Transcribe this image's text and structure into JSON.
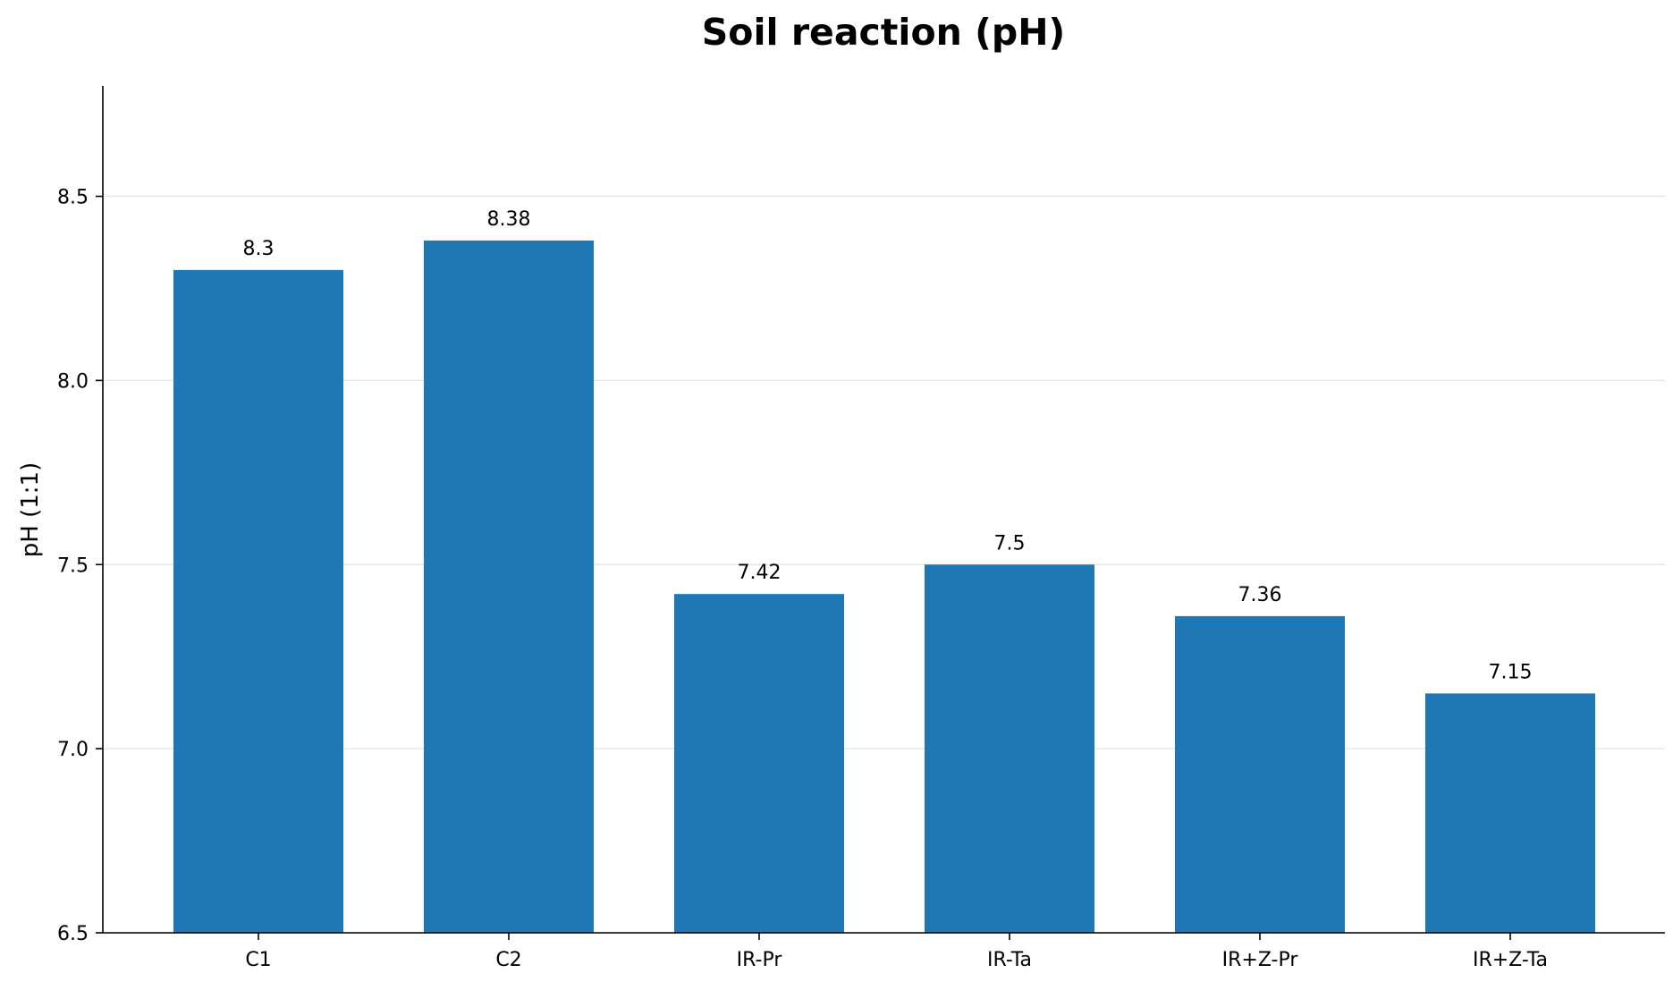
{
  "chart_data": {
    "type": "bar",
    "title": "Soil reaction (pH)",
    "xlabel": "",
    "ylabel": "pH (1:1)",
    "categories": [
      "C1",
      "C2",
      "IR-Pr",
      "IR-Ta",
      "IR+Z-Pr",
      "IR+Z-Ta"
    ],
    "values": [
      8.3,
      8.38,
      7.42,
      7.5,
      7.36,
      7.15
    ],
    "data_labels": [
      "8.3",
      "8.38",
      "7.42",
      "7.5",
      "7.36",
      "7.15"
    ],
    "ylim": [
      6.5,
      8.8
    ],
    "yticks": [
      6.5,
      7.0,
      7.5,
      8.0,
      8.5
    ],
    "ytick_labels": [
      "6.5",
      "7.0",
      "7.5",
      "8.0",
      "8.5"
    ],
    "grid": "horizontal",
    "bar_color": "#1f77b4",
    "legend": "none"
  }
}
